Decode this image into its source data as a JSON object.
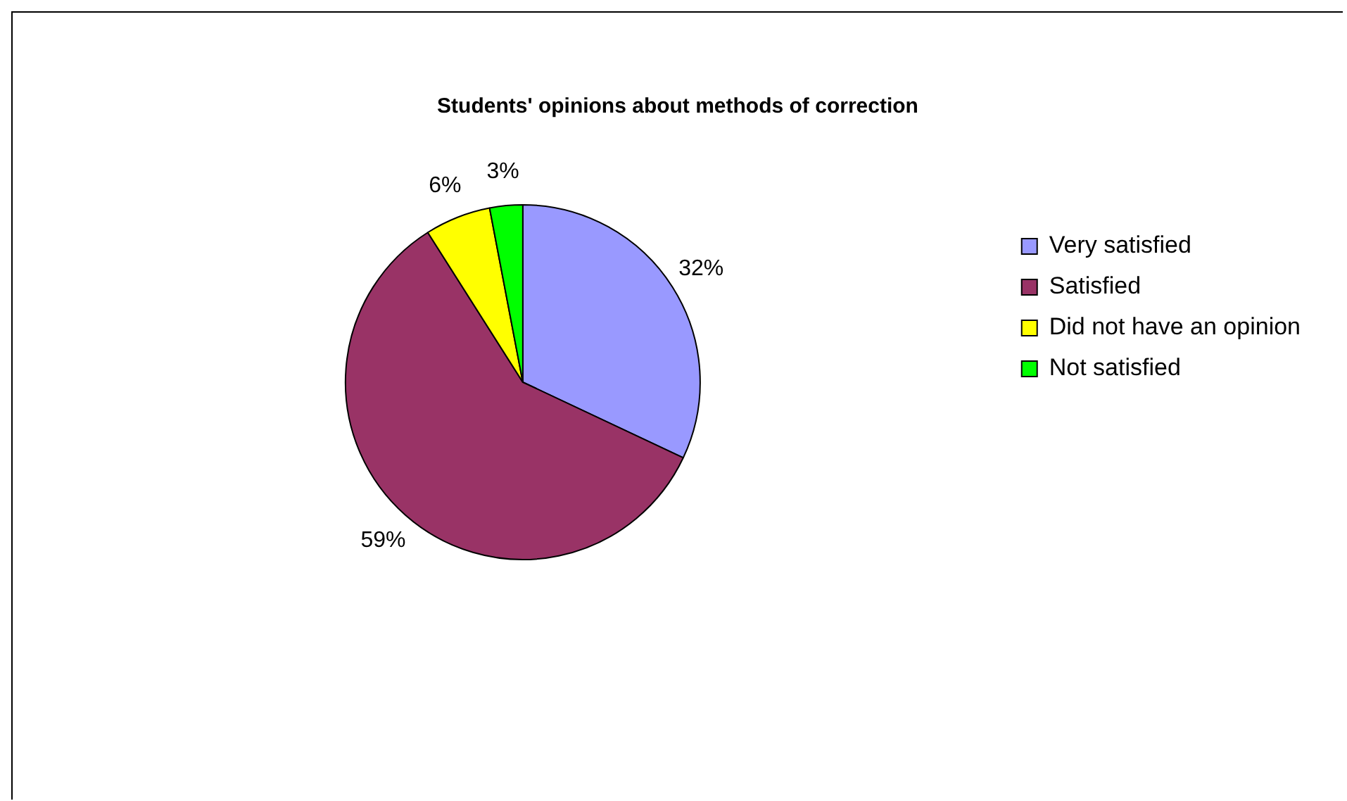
{
  "chart_data": {
    "type": "pie",
    "title": "Students' opinions about methods of correction",
    "categories": [
      "Very satisfied",
      "Satisfied",
      "Did not have an opinion",
      "Not satisfied"
    ],
    "values": [
      32,
      59,
      6,
      3
    ],
    "colors": [
      "#9999ff",
      "#993366",
      "#ffff00",
      "#00ff00"
    ],
    "value_labels": [
      "32%",
      "59%",
      "6%",
      "3%"
    ],
    "legend": "right"
  }
}
